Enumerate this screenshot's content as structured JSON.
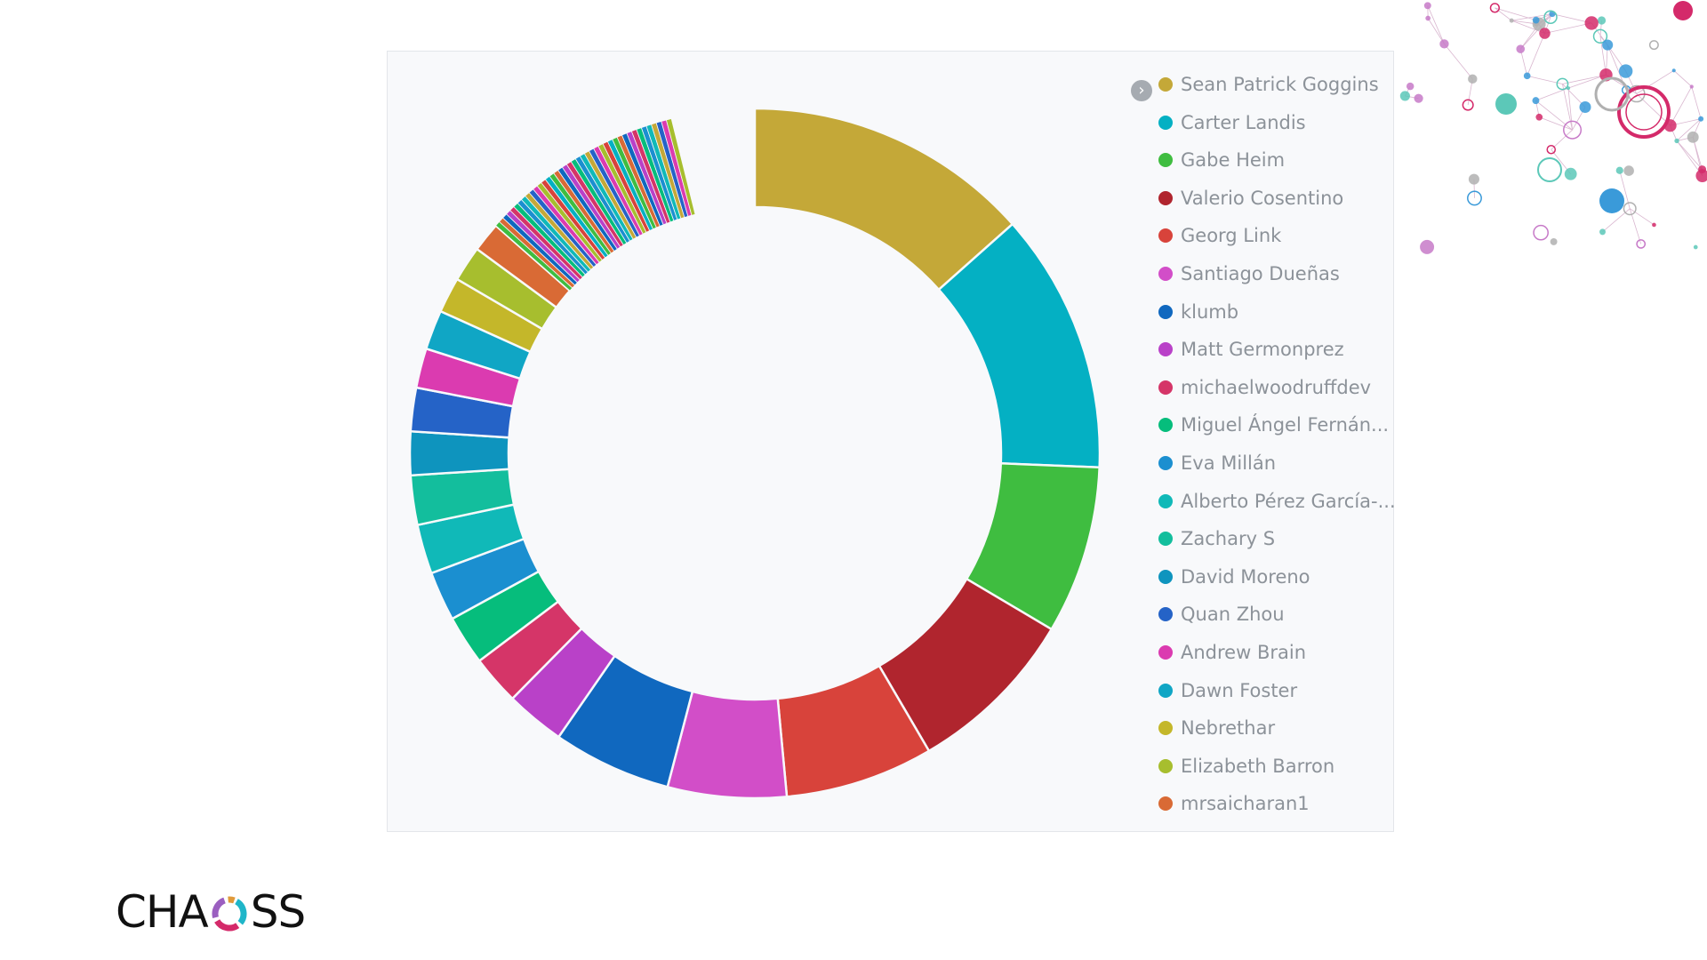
{
  "chart_data": {
    "type": "pie",
    "donut": true,
    "legend_position": "right",
    "categories": [
      "Sean Patrick Goggins",
      "Carter Landis",
      "Gabe Heim",
      "Valerio Cosentino",
      "Georg Link",
      "Santiago Dueñas",
      "klumb",
      "Matt Germonprez",
      "michaelwoodruffdev",
      "Miguel Ángel Fernán...",
      "Eva Millán",
      "Alberto Pérez García-...",
      "Zachary S",
      "David Moreno",
      "Quan Zhou",
      "Andrew Brain",
      "Dawn Foster",
      "Nebrethar",
      "Elizabeth Barron",
      "mrsaicharan1"
    ],
    "values": [
      14.5,
      13.2,
      8.5,
      8.7,
      7.5,
      6.0,
      6.0,
      3.0,
      2.5,
      2.5,
      2.5,
      2.5,
      2.5,
      2.2,
      2.2,
      2.0,
      2.0,
      1.8,
      1.8,
      1.5
    ],
    "colors": [
      "#c4a838",
      "#04b0c3",
      "#3fbd40",
      "#b0252e",
      "#d8433b",
      "#d24ec8",
      "#1068bf",
      "#b941c8",
      "#d53568",
      "#06bd7c",
      "#1b8fd0",
      "#10b9b8",
      "#13be9d",
      "#0e94be",
      "#2563c7",
      "#db3bb0",
      "#10a6c5",
      "#c4b72a",
      "#a7be2e",
      "#d96a35"
    ],
    "tail_series": {
      "count": 40,
      "total": 10.4,
      "colors": [
        "#3fbd40",
        "#d96a35",
        "#1068bf",
        "#b941c8",
        "#d53568",
        "#06bd7c",
        "#1b8fd0",
        "#10b9b8",
        "#c4a838",
        "#2563c7",
        "#db3bb0",
        "#a7be2e",
        "#d8433b",
        "#04b0c3"
      ]
    },
    "gap_value": 4.2
  },
  "legend": {
    "items": [
      "Sean Patrick Goggins",
      "Carter Landis",
      "Gabe Heim",
      "Valerio Cosentino",
      "Georg Link",
      "Santiago Dueñas",
      "klumb",
      "Matt Germonprez",
      "michaelwoodruffdev",
      "Miguel Ángel Fernán...",
      "Eva Millán",
      "Alberto Pérez García-...",
      "Zachary S",
      "David Moreno",
      "Quan Zhou",
      "Andrew Brain",
      "Dawn Foster",
      "Nebrethar",
      "Elizabeth Barron",
      "mrsaicharan1"
    ],
    "toggle_icon": "chevron-right-icon"
  },
  "logo": {
    "name": "CHAOSS",
    "left_text": "CHA",
    "right_text": "SS",
    "ring_colors": [
      "#1fb6c9",
      "#d42a6a",
      "#9b5fc0",
      "#e09a3a"
    ]
  },
  "decoration": {
    "name": "network-graph-icon",
    "colors": [
      "#d42a6a",
      "#3a9ad9",
      "#5cc8b8",
      "#b0b0b0",
      "#c77ac8"
    ]
  }
}
